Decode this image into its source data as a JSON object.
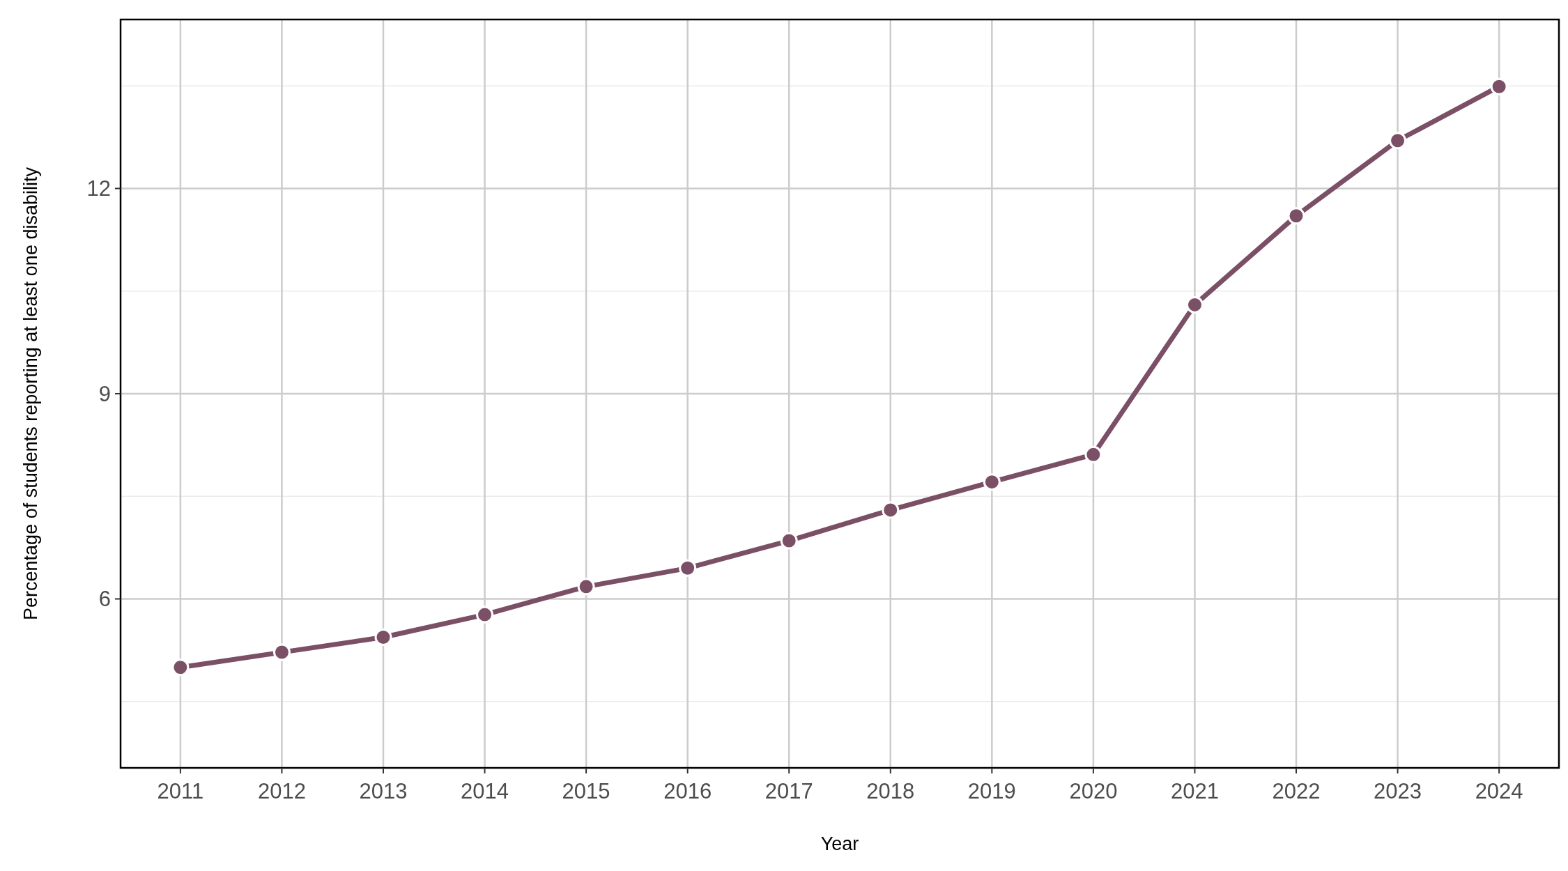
{
  "chart_data": {
    "type": "line",
    "xlabel": "Year",
    "ylabel": "Percentage of students reporting at least one disability",
    "x": [
      2011,
      2012,
      2013,
      2014,
      2015,
      2016,
      2017,
      2018,
      2019,
      2020,
      2021,
      2022,
      2023,
      2024
    ],
    "series": [
      {
        "color": "#7b4f65",
        "values": [
          5.0,
          5.22,
          5.44,
          5.77,
          6.18,
          6.45,
          6.85,
          7.3,
          7.71,
          8.11,
          10.3,
          11.6,
          12.7,
          13.49
        ]
      }
    ],
    "xlim": [
      2010.41,
      2024.59
    ],
    "xticks": [
      2011,
      2012,
      2013,
      2014,
      2015,
      2016,
      2017,
      2018,
      2019,
      2020,
      2021,
      2022,
      2023,
      2024
    ],
    "ylim": [
      3.53,
      14.47
    ],
    "yticks": [
      {
        "value": 4.5,
        "label": null
      },
      6,
      {
        "value": 7.5,
        "label": null
      },
      9,
      {
        "value": 10.5,
        "label": null
      },
      12,
      {
        "value": 13.5,
        "label": null
      }
    ],
    "grid": true,
    "marker": "circle",
    "line_style": "solid"
  }
}
